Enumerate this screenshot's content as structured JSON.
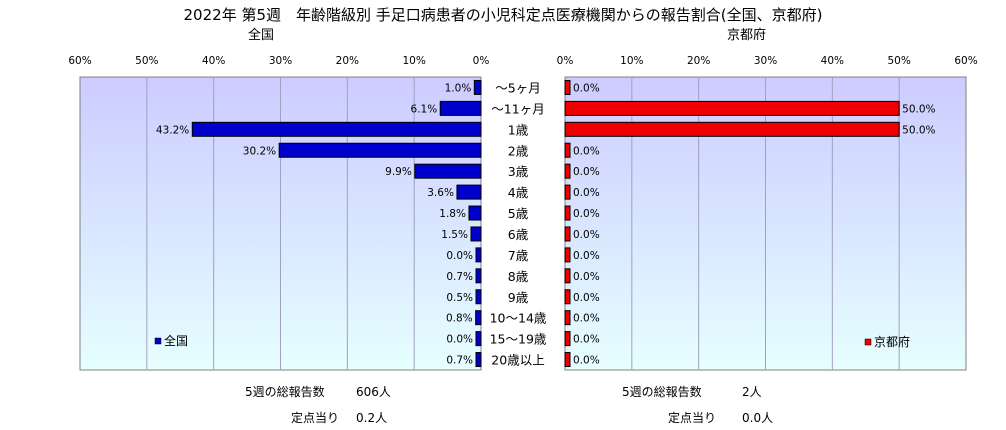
{
  "title": "2022年 第5週　年齢階級別 手足口病患者の小児科定点医療機関からの報告割合(全国、京都府)",
  "left_subtitle": "全国",
  "right_subtitle": "京都府",
  "colors": {
    "plot_bg_top": "#ccccff",
    "plot_bg_bottom": "#e6ffff",
    "national_bar": "#0000cc",
    "kyoto_bar": "#ee0000",
    "grid": "#a0a0c0"
  },
  "national_stats": {
    "total_label": "5週の総報告数",
    "total_value": "606人",
    "per_site_label": "定点当り",
    "per_site_value": "0.2人"
  },
  "kyoto_stats": {
    "total_label": "5週の総報告数",
    "total_value": "2人",
    "per_site_label": "定点当り",
    "per_site_value": "0.0人"
  },
  "chart_data": [
    {
      "type": "bar",
      "orientation": "horizontal",
      "direction": "right-to-left",
      "title": "全国",
      "categories": [
        "～5ヶ月",
        "～11ヶ月",
        "1歳",
        "2歳",
        "3歳",
        "4歳",
        "5歳",
        "6歳",
        "7歳",
        "8歳",
        "9歳",
        "10～14歳",
        "15～19歳",
        "20歳以上"
      ],
      "series": [
        {
          "name": "全国",
          "values": [
            1.0,
            6.1,
            43.2,
            30.2,
            9.9,
            3.6,
            1.8,
            1.5,
            0.0,
            0.7,
            0.5,
            0.8,
            0.0,
            0.7
          ]
        }
      ],
      "value_labels": [
        "1.0%",
        "6.1%",
        "43.2%",
        "30.2%",
        "9.9%",
        "3.6%",
        "1.8%",
        "1.5%",
        "0.0%",
        "0.7%",
        "0.5%",
        "0.8%",
        "0.0%",
        "0.7%"
      ],
      "xlim": [
        0,
        60
      ],
      "ticks": [
        "60%",
        "50%",
        "40%",
        "30%",
        "20%",
        "10%",
        "0%"
      ],
      "legend": "bottom-left",
      "grid": true
    },
    {
      "type": "bar",
      "orientation": "horizontal",
      "direction": "left-to-right",
      "title": "京都府",
      "categories": [
        "～5ヶ月",
        "～11ヶ月",
        "1歳",
        "2歳",
        "3歳",
        "4歳",
        "5歳",
        "6歳",
        "7歳",
        "8歳",
        "9歳",
        "10～14歳",
        "15～19歳",
        "20歳以上"
      ],
      "series": [
        {
          "name": "京都府",
          "values": [
            0.0,
            50.0,
            50.0,
            0.0,
            0.0,
            0.0,
            0.0,
            0.0,
            0.0,
            0.0,
            0.0,
            0.0,
            0.0,
            0.0
          ]
        }
      ],
      "value_labels": [
        "0.0%",
        "50.0%",
        "50.0%",
        "0.0%",
        "0.0%",
        "0.0%",
        "0.0%",
        "0.0%",
        "0.0%",
        "0.0%",
        "0.0%",
        "0.0%",
        "0.0%",
        "0.0%"
      ],
      "xlim": [
        0,
        60
      ],
      "ticks": [
        "0%",
        "10%",
        "20%",
        "30%",
        "40%",
        "50%",
        "60%"
      ],
      "legend": "bottom-right",
      "grid": true
    }
  ]
}
